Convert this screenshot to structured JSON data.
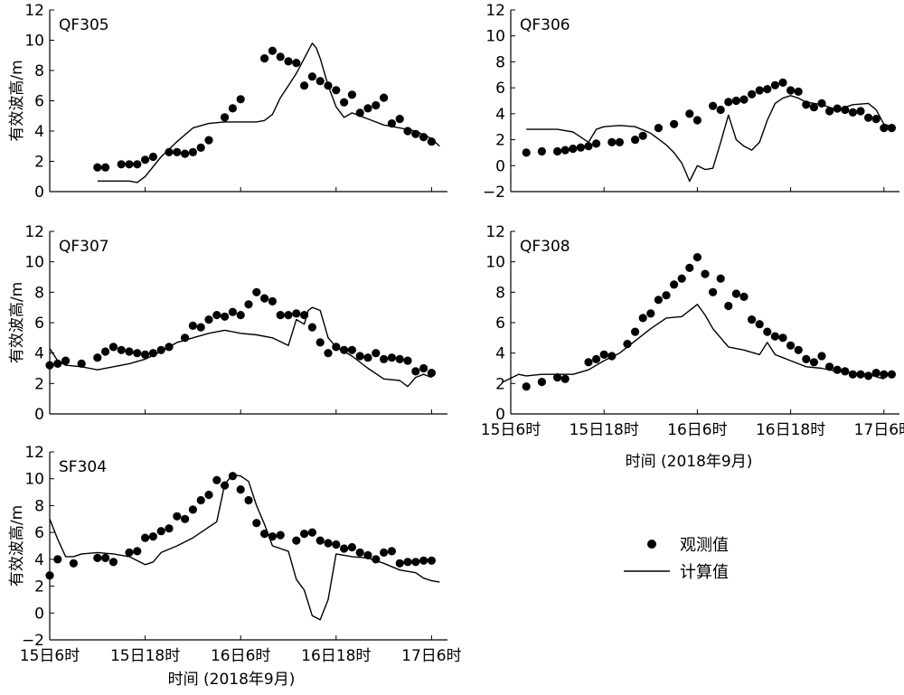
{
  "legend": {
    "observed_label": "观测值",
    "computed_label": "计算值"
  },
  "x_axis": {
    "ticks": [
      0,
      12,
      24,
      36,
      48
    ],
    "tick_labels": [
      "15日6时",
      "15日18时",
      "16日6时",
      "16日18时",
      "17日6时"
    ],
    "xlabel": "时间 (2018年9月)",
    "xlim": [
      0,
      50
    ],
    "tick_note": "x in hours since 15日6时"
  },
  "chart_data": [
    {
      "type": "scatter+line",
      "title": "QF305",
      "ylabel": "有效波高/m",
      "ylim": [
        0,
        12
      ],
      "yticks": [
        0,
        2,
        4,
        6,
        8,
        10,
        12
      ],
      "observed": {
        "name": "观测值",
        "x": [
          6,
          7,
          9,
          10,
          11,
          12,
          13,
          15,
          16,
          17,
          18,
          19,
          20,
          22,
          23,
          24,
          27,
          28,
          29,
          30,
          31,
          32,
          33,
          34,
          35,
          36,
          37,
          38,
          39,
          40,
          41,
          42,
          43,
          44,
          45,
          46,
          47,
          48
        ],
        "y": [
          1.6,
          1.6,
          1.8,
          1.8,
          1.8,
          2.1,
          2.3,
          2.6,
          2.6,
          2.5,
          2.6,
          2.9,
          3.4,
          4.9,
          5.5,
          6.1,
          8.8,
          9.3,
          8.9,
          8.6,
          8.5,
          7.0,
          7.6,
          7.3,
          7.0,
          6.7,
          5.9,
          6.4,
          5.2,
          5.5,
          5.7,
          6.2,
          4.5,
          4.8,
          4.0,
          3.8,
          3.6,
          3.3
        ]
      },
      "computed": {
        "name": "计算值",
        "x": [
          6,
          8,
          10,
          11,
          12,
          14,
          16,
          18,
          20,
          22,
          24,
          26,
          27,
          28,
          29,
          30,
          31,
          32,
          33,
          33.5,
          34,
          35,
          36,
          37,
          38,
          40,
          42,
          44,
          46,
          48,
          49
        ],
        "y": [
          0.7,
          0.7,
          0.7,
          0.6,
          1.0,
          2.3,
          3.3,
          4.2,
          4.5,
          4.6,
          4.6,
          4.6,
          4.7,
          5.1,
          6.2,
          7.0,
          7.8,
          8.8,
          9.8,
          9.5,
          8.8,
          7.0,
          5.6,
          4.9,
          5.2,
          4.8,
          4.4,
          4.2,
          4.0,
          3.5,
          3.0
        ]
      }
    },
    {
      "type": "scatter+line",
      "title": "QF306",
      "ylabel": "",
      "ylim": [
        -2,
        12
      ],
      "yticks": [
        -2,
        0,
        2,
        4,
        6,
        8,
        10,
        12
      ],
      "observed": {
        "name": "观测值",
        "x": [
          2,
          4,
          6,
          7,
          8,
          9,
          10,
          11,
          13,
          14,
          16,
          17,
          19,
          21,
          23,
          24,
          26,
          27,
          28,
          29,
          30,
          31,
          32,
          33,
          34,
          35,
          36,
          37,
          38,
          39,
          40,
          41,
          42,
          43,
          44,
          45,
          46,
          47,
          48,
          49
        ],
        "y": [
          1.0,
          1.1,
          1.1,
          1.2,
          1.3,
          1.4,
          1.5,
          1.7,
          1.8,
          1.8,
          2.0,
          2.3,
          2.9,
          3.2,
          4.0,
          3.5,
          4.6,
          4.3,
          4.9,
          5.0,
          5.1,
          5.5,
          5.8,
          5.9,
          6.2,
          6.4,
          5.8,
          5.7,
          4.7,
          4.5,
          4.8,
          4.2,
          4.4,
          4.3,
          4.1,
          4.2,
          3.7,
          3.6,
          2.9,
          2.9
        ]
      },
      "computed": {
        "name": "计算值",
        "x": [
          2,
          6,
          8,
          9,
          10,
          11,
          12,
          14,
          16,
          18,
          20,
          21,
          22,
          23,
          24,
          25,
          26,
          27,
          28,
          29,
          30,
          31,
          32,
          33,
          34,
          35,
          36,
          37,
          38,
          40,
          42,
          44,
          46,
          47,
          48,
          49
        ],
        "y": [
          2.8,
          2.8,
          2.6,
          2.2,
          1.8,
          2.8,
          3.0,
          3.1,
          3.0,
          2.5,
          1.6,
          1.0,
          0.2,
          -1.2,
          0.0,
          -0.3,
          -0.2,
          1.8,
          3.9,
          2.0,
          1.5,
          1.2,
          1.8,
          3.5,
          4.8,
          5.2,
          5.4,
          5.2,
          4.9,
          4.7,
          4.3,
          4.7,
          4.8,
          4.3,
          3.2,
          3.0
        ]
      }
    },
    {
      "type": "scatter+line",
      "title": "QF307",
      "ylabel": "有效波高/m",
      "ylim": [
        0,
        12
      ],
      "yticks": [
        0,
        2,
        4,
        6,
        8,
        10,
        12
      ],
      "observed": {
        "name": "观测值",
        "x": [
          0,
          1,
          2,
          4,
          6,
          7,
          8,
          9,
          10,
          11,
          12,
          13,
          14,
          15,
          17,
          18,
          19,
          20,
          21,
          22,
          23,
          24,
          25,
          26,
          27,
          28,
          29,
          30,
          31,
          32,
          33,
          34,
          35,
          36,
          37,
          38,
          39,
          40,
          41,
          42,
          43,
          44,
          45,
          46,
          47,
          48
        ],
        "y": [
          3.2,
          3.3,
          3.5,
          3.3,
          3.7,
          4.1,
          4.4,
          4.2,
          4.1,
          4.0,
          3.9,
          4.0,
          4.2,
          4.4,
          5.0,
          5.8,
          5.7,
          6.2,
          6.5,
          6.4,
          6.7,
          6.5,
          7.2,
          8.0,
          7.6,
          7.4,
          6.5,
          6.5,
          6.6,
          6.5,
          5.7,
          4.7,
          4.0,
          4.4,
          4.2,
          4.2,
          3.8,
          3.7,
          4.0,
          3.6,
          3.7,
          3.6,
          3.5,
          2.8,
          3.0,
          2.7
        ]
      },
      "computed": {
        "name": "计算值",
        "x": [
          0,
          1,
          2,
          4,
          6,
          8,
          10,
          12,
          14,
          16,
          18,
          20,
          22,
          24,
          26,
          28,
          30,
          31,
          32,
          32.5,
          33,
          34,
          35,
          36,
          38,
          40,
          42,
          44,
          45,
          46,
          47,
          48
        ],
        "y": [
          4.3,
          3.5,
          3.2,
          3.1,
          2.9,
          3.1,
          3.3,
          3.6,
          4.1,
          4.7,
          5.0,
          5.3,
          5.5,
          5.3,
          5.2,
          5.0,
          4.5,
          6.2,
          5.9,
          6.8,
          7.0,
          6.8,
          5.0,
          4.4,
          3.8,
          3.0,
          2.3,
          2.2,
          1.8,
          2.4,
          2.6,
          2.4
        ]
      }
    },
    {
      "type": "scatter+line",
      "title": "QF308",
      "ylabel": "",
      "ylim": [
        0,
        12
      ],
      "yticks": [
        0,
        2,
        4,
        6,
        8,
        10,
        12
      ],
      "observed": {
        "name": "观测值",
        "x": [
          2,
          4,
          6,
          7,
          10,
          11,
          12,
          13,
          15,
          16,
          17,
          18,
          19,
          20,
          21,
          22,
          23,
          24,
          25,
          26,
          27,
          28,
          29,
          30,
          31,
          32,
          33,
          34,
          35,
          36,
          37,
          38,
          39,
          40,
          41,
          42,
          43,
          44,
          45,
          46,
          47,
          48,
          49
        ],
        "y": [
          1.8,
          2.1,
          2.4,
          2.3,
          3.4,
          3.6,
          3.9,
          3.8,
          4.6,
          5.4,
          6.3,
          6.6,
          7.5,
          7.8,
          8.5,
          8.9,
          9.6,
          10.3,
          9.2,
          8.0,
          8.9,
          7.1,
          7.9,
          7.7,
          6.2,
          5.9,
          5.4,
          5.1,
          5.0,
          4.5,
          4.2,
          3.6,
          3.4,
          3.8,
          3.1,
          2.9,
          2.8,
          2.6,
          2.6,
          2.5,
          2.7,
          2.6,
          2.6
        ]
      },
      "computed": {
        "name": "计算值",
        "x": [
          -1,
          1,
          2,
          4,
          6,
          8,
          10,
          12,
          14,
          16,
          18,
          20,
          22,
          24,
          25,
          26,
          28,
          30,
          32,
          33,
          34,
          35,
          36,
          38,
          40,
          42,
          44,
          46,
          48
        ],
        "y": [
          2.1,
          2.6,
          2.5,
          2.6,
          2.6,
          2.6,
          2.9,
          3.5,
          4.0,
          4.8,
          5.6,
          6.3,
          6.4,
          7.2,
          6.5,
          5.6,
          4.4,
          4.2,
          3.9,
          4.7,
          3.9,
          3.7,
          3.5,
          3.1,
          3.0,
          2.8,
          2.7,
          2.6,
          2.3
        ]
      }
    },
    {
      "type": "scatter+line",
      "title": "SF304",
      "ylabel": "有效波高/m",
      "ylim": [
        -2,
        12
      ],
      "yticks": [
        -2,
        0,
        2,
        4,
        6,
        8,
        10,
        12
      ],
      "observed": {
        "name": "观测值",
        "x": [
          0,
          1,
          3,
          6,
          7,
          8,
          10,
          11,
          12,
          13,
          14,
          15,
          16,
          17,
          18,
          19,
          20,
          21,
          22,
          23,
          24,
          25,
          26,
          27,
          28,
          29,
          31,
          32,
          33,
          34,
          35,
          36,
          37,
          38,
          39,
          40,
          41,
          42,
          43,
          44,
          45,
          46,
          47,
          48
        ],
        "y": [
          2.8,
          4.0,
          3.7,
          4.1,
          4.1,
          3.8,
          4.5,
          4.6,
          5.6,
          5.7,
          6.1,
          6.3,
          7.2,
          7.0,
          7.7,
          8.4,
          8.8,
          9.9,
          9.5,
          10.2,
          9.2,
          8.4,
          6.7,
          5.9,
          5.7,
          5.8,
          5.4,
          5.9,
          6.0,
          5.4,
          5.2,
          5.1,
          4.8,
          4.9,
          4.5,
          4.3,
          4.0,
          4.5,
          4.6,
          3.7,
          3.8,
          3.8,
          3.9,
          3.9
        ]
      },
      "computed": {
        "name": "计算值",
        "x": [
          0,
          1,
          2,
          3,
          4,
          6,
          8,
          10,
          12,
          13,
          14,
          16,
          18,
          20,
          21,
          22,
          23,
          24,
          25,
          26,
          27,
          28,
          30,
          31,
          32,
          33,
          34,
          35,
          36,
          37,
          38,
          40,
          42,
          44,
          46,
          47,
          48,
          49
        ],
        "y": [
          7.0,
          5.5,
          4.2,
          4.2,
          4.4,
          4.5,
          4.4,
          4.2,
          3.6,
          3.8,
          4.5,
          5.0,
          5.6,
          6.4,
          6.8,
          9.6,
          10.3,
          10.2,
          9.8,
          8.0,
          6.6,
          5.0,
          4.6,
          2.5,
          1.7,
          -0.2,
          -0.5,
          1.0,
          4.4,
          4.3,
          4.2,
          4.1,
          3.7,
          3.2,
          3.0,
          2.6,
          2.4,
          2.3
        ]
      }
    }
  ]
}
